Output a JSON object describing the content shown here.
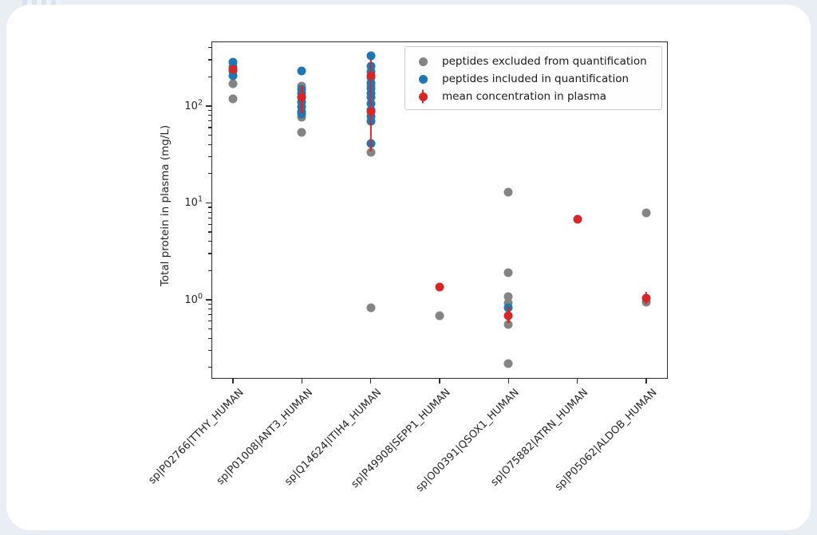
{
  "chart_data": {
    "type": "scatter",
    "title": "",
    "xlabel": "",
    "ylabel": "Total protein in plasma (mg/L)",
    "yscale": "log",
    "ylim": [
      0.153,
      464
    ],
    "yticks": [
      100,
      10,
      1
    ],
    "grid": false,
    "legend_position": "upper right",
    "categories": [
      "sp|P02766|TTHY_HUMAN",
      "sp|P01008|ANT3_HUMAN",
      "sp|Q14624|ITIH4_HUMAN",
      "sp|P49908|SEPP1_HUMAN",
      "sp|O00391|QSOX1_HUMAN",
      "sp|O75882|ATRN_HUMAN",
      "sp|P05062|ALDOB_HUMAN"
    ],
    "series": [
      {
        "name": "peptides excluded from quantification",
        "color": "#848484",
        "marker": "circle",
        "points": [
          [
            0,
            170
          ],
          [
            0,
            118
          ],
          [
            1,
            160
          ],
          [
            1,
            77
          ],
          [
            1,
            53
          ],
          [
            2,
            160
          ],
          [
            2,
            33
          ],
          [
            2,
            0.83
          ],
          [
            3,
            0.68
          ],
          [
            4,
            13
          ],
          [
            4,
            1.9
          ],
          [
            4,
            1.08
          ],
          [
            4,
            0.93
          ],
          [
            4,
            0.55
          ],
          [
            4,
            0.22
          ],
          [
            6,
            7.9
          ],
          [
            6,
            0.95
          ]
        ]
      },
      {
        "name": "peptides included in quantification",
        "color": "#1f77b4",
        "marker": "circle",
        "points": [
          [
            0,
            283
          ],
          [
            0,
            255
          ],
          [
            0,
            228
          ],
          [
            0,
            205
          ],
          [
            1,
            228
          ],
          [
            1,
            150
          ],
          [
            1,
            135
          ],
          [
            1,
            122
          ],
          [
            1,
            110
          ],
          [
            1,
            98
          ],
          [
            1,
            88
          ],
          [
            1,
            82
          ],
          [
            2,
            330
          ],
          [
            2,
            258
          ],
          [
            2,
            226
          ],
          [
            2,
            198
          ],
          [
            2,
            173
          ],
          [
            2,
            152
          ],
          [
            2,
            135
          ],
          [
            2,
            123
          ],
          [
            2,
            106
          ],
          [
            2,
            91
          ],
          [
            2,
            78
          ],
          [
            2,
            70
          ],
          [
            2,
            41
          ],
          [
            4,
            0.82
          ]
        ]
      },
      {
        "name": "mean concentration in plasma",
        "color": "#d62728",
        "marker": "circle-errorbar",
        "points": [
          [
            0,
            240
          ],
          [
            1,
            123
          ],
          [
            2,
            205
          ],
          [
            2,
            88
          ],
          [
            3,
            1.36
          ],
          [
            4,
            0.69
          ],
          [
            5,
            6.8
          ],
          [
            6,
            1.03
          ]
        ],
        "error_bars": [
          [
            1,
            84,
            160
          ],
          [
            2,
            34,
            300
          ],
          [
            4,
            0.58,
            0.85
          ],
          [
            6,
            0.9,
            1.2
          ]
        ]
      }
    ]
  }
}
